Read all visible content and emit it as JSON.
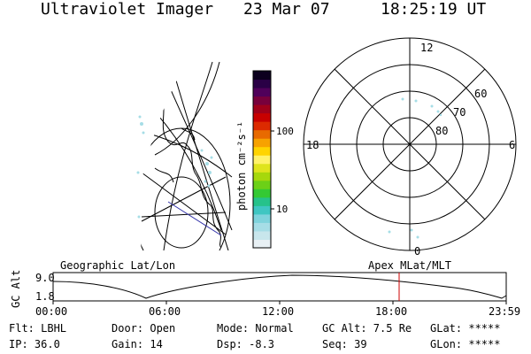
{
  "header": {
    "instrument": "Ultraviolet Imager",
    "date": "23 Mar 07",
    "time": "18:25:19 UT"
  },
  "colorbar": {
    "unit_label": "photon cm⁻²s⁻¹",
    "tick_labels": [
      "100",
      "10"
    ],
    "colors": [
      "#e8f0f4",
      "#c8e6ec",
      "#a6dde6",
      "#7fd3dc",
      "#3fc6c2",
      "#26c28a",
      "#34c934",
      "#6cd017",
      "#a6d80c",
      "#dfe41d",
      "#fff26a",
      "#ffd400",
      "#f7a200",
      "#e86a00",
      "#dc2a00",
      "#c80000",
      "#a0001a",
      "#78003c",
      "#50005a",
      "#2a0046",
      "#0c001e"
    ]
  },
  "geo_panel": {
    "label": "Geographic Lat/Lon"
  },
  "polar_panel": {
    "label": "Apex MLat/MLT",
    "mlt_labels": {
      "top": "12",
      "left": "18",
      "right": "6",
      "bottom": "0"
    },
    "lat_labels": [
      "60",
      "70",
      "80"
    ]
  },
  "altitude_plot": {
    "ylabel": "GC Alt",
    "y_tick_labels": [
      "9.0",
      "1.8"
    ],
    "x_tick_labels": [
      "00:00",
      "06:00",
      "12:00",
      "18:00",
      "23:59"
    ],
    "marker_time": "18:25",
    "marker_color": "#cc0000"
  },
  "info": {
    "row1": {
      "flt": "Flt: LBHL",
      "door": "Door: Open",
      "mode": "Mode: Normal",
      "gcalt": "GC Alt: 7.5 Re",
      "glat": "GLat: *****"
    },
    "row2": {
      "ip": "IP: 36.0",
      "gain": "Gain: 14",
      "dsp": "Dsp:   -8.3",
      "seq": "Seq: 39",
      "glon": "GLon: *****"
    }
  }
}
